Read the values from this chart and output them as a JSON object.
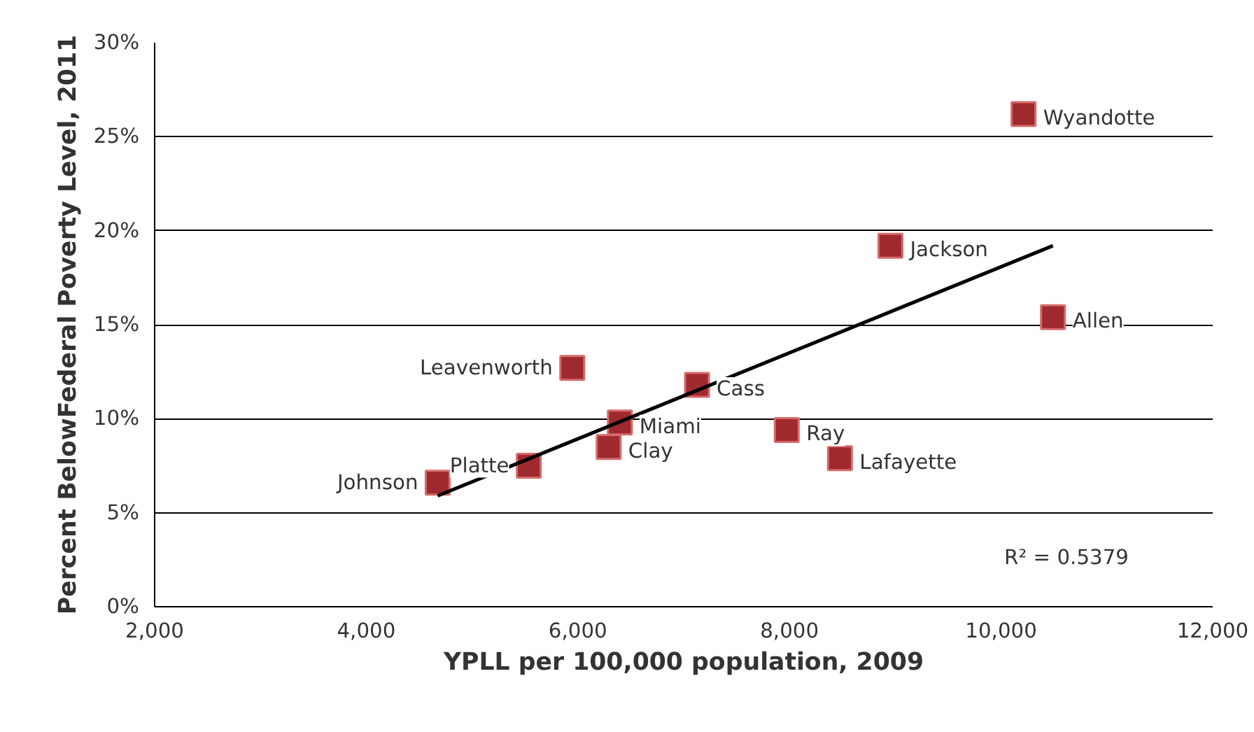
{
  "chart_data": {
    "type": "scatter",
    "xlabel": "YPLL per 100,000 population, 2009",
    "ylabel": "Percent BelowFederal Poverty Level, 2011",
    "xlim": [
      2000,
      12000
    ],
    "ylim": [
      0,
      30
    ],
    "xticks": [
      {
        "value": 2000,
        "label": "2,000"
      },
      {
        "value": 4000,
        "label": "4,000"
      },
      {
        "value": 6000,
        "label": "6,000"
      },
      {
        "value": 8000,
        "label": "8,000"
      },
      {
        "value": 10000,
        "label": "10,000"
      },
      {
        "value": 12000,
        "label": "12,000"
      }
    ],
    "yticks": [
      {
        "value": 0,
        "label": "0%"
      },
      {
        "value": 5,
        "label": "5%"
      },
      {
        "value": 10,
        "label": "10%"
      },
      {
        "value": 15,
        "label": "15%"
      },
      {
        "value": 20,
        "label": "20%"
      },
      {
        "value": 25,
        "label": "25%"
      },
      {
        "value": 30,
        "label": "30%"
      }
    ],
    "grid": "y",
    "series": [
      {
        "marker": "square",
        "color": "#9e2a2f",
        "x": [
          4675,
          5536,
          6291,
          6397,
          5947,
          7126,
          7974,
          8477,
          8954,
          10490,
          10212
        ],
        "values": [
          6.6,
          7.5,
          8.5,
          9.8,
          12.7,
          11.8,
          9.4,
          7.9,
          19.2,
          15.4,
          26.2
        ]
      },
      {
        "type": "line",
        "color": "#000000",
        "x": [
          4675,
          10490
        ],
        "values": [
          5.9,
          19.2
        ]
      }
    ],
    "annotations": [
      {
        "text": "Johnson",
        "x": 4675,
        "y": 6.6
      },
      {
        "text": "Platte",
        "x": 5536,
        "y": 7.5
      },
      {
        "text": "Clay",
        "x": 6291,
        "y": 8.5
      },
      {
        "text": "Miami",
        "x": 6397,
        "y": 9.8
      },
      {
        "text": "Leavenworth",
        "x": 5947,
        "y": 12.7
      },
      {
        "text": "Cass",
        "x": 7126,
        "y": 11.8
      },
      {
        "text": "Ray",
        "x": 7974,
        "y": 9.4
      },
      {
        "text": "Lafayette",
        "x": 8477,
        "y": 7.9
      },
      {
        "text": "Jackson",
        "x": 8954,
        "y": 19.2
      },
      {
        "text": "Allen",
        "x": 10490,
        "y": 15.4
      },
      {
        "text": "Wyandotte",
        "x": 10212,
        "y": 26.2
      },
      "R² = 0.5379"
    ]
  }
}
